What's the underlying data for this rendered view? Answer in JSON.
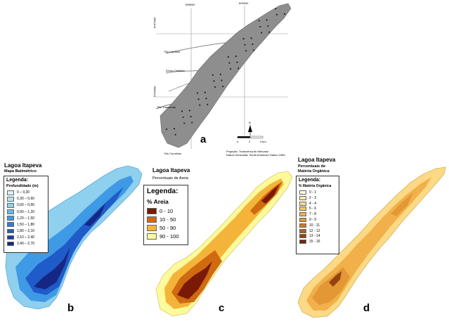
{
  "map_a": {
    "panel_letter": "a",
    "coord_labels": [
      "598940",
      "609940",
      "6747960",
      "6733960"
    ],
    "river_labels": [
      "Rio Cardoso",
      "Arroio Cândido",
      "Rio Tramandaí",
      "Rio Cornélios"
    ],
    "north_label": "N",
    "scale_ticks": [
      "0",
      "2",
      "4 km"
    ],
    "projection_text": [
      "Projeção: Transversa de Mercator",
      "Datum horizontal: South American Datum 1969"
    ]
  },
  "map_b": {
    "title": "Lagoa Itapeva",
    "subtitle": "Mapa Batimétrico",
    "legend_title": "Legenda:",
    "legend_subtitle": "Profundidade (m)",
    "legend": [
      {
        "label": "0 – 0,30",
        "color": "#d7f1f8"
      },
      {
        "label": "0,30 – 0,60",
        "color": "#b3e2f3"
      },
      {
        "label": "0,60 – 0,90",
        "color": "#8fd0ee"
      },
      {
        "label": "0,90 – 1,20",
        "color": "#66b8ea"
      },
      {
        "label": "1,20 – 1,50",
        "color": "#3f9ae5"
      },
      {
        "label": "1,50 – 1,80",
        "color": "#2c7bdc"
      },
      {
        "label": "1,80 – 2,10",
        "color": "#1f5bc9"
      },
      {
        "label": "2,10 – 2,40",
        "color": "#1b3ba8"
      },
      {
        "label": "2,40 – 2,70",
        "color": "#162783"
      }
    ],
    "panel_letter": "b"
  },
  "map_c": {
    "title": "Lagoa Itapeva",
    "subtitle": "Percentuais de Areia",
    "legend_title": "Legenda:",
    "legend_subtitle": "% Areia",
    "legend": [
      {
        "label": "0 - 10",
        "color": "#7a1a06"
      },
      {
        "label": "10 - 50",
        "color": "#cf6a10"
      },
      {
        "label": "50 - 90",
        "color": "#f4b43a"
      },
      {
        "label": "90 - 100",
        "color": "#fdfa9c"
      }
    ],
    "panel_letter": "c"
  },
  "map_d": {
    "title": "Lagoa Itapeva",
    "subtitle_line1": "Percentuais de",
    "subtitle_line2": "Matéria Orgânica",
    "legend_title": "Legenda:",
    "legend_subtitle": "% Matéria Orgânica",
    "legend": [
      {
        "label": "0 - 1",
        "color": "#fffbe6"
      },
      {
        "label": "2 - 3",
        "color": "#fde9a6"
      },
      {
        "label": "4 - 4",
        "color": "#fbd985"
      },
      {
        "label": "5 - 6",
        "color": "#f7c765"
      },
      {
        "label": "7 - 8",
        "color": "#f2b04a"
      },
      {
        "label": "9 - 9",
        "color": "#e39735"
      },
      {
        "label": "10 - 11",
        "color": "#cd7a25"
      },
      {
        "label": "12 - 12",
        "color": "#b35e18"
      },
      {
        "label": "13 - 14",
        "color": "#94430f"
      },
      {
        "label": "15 - 16",
        "color": "#6e2708"
      }
    ],
    "panel_letter": "d"
  }
}
